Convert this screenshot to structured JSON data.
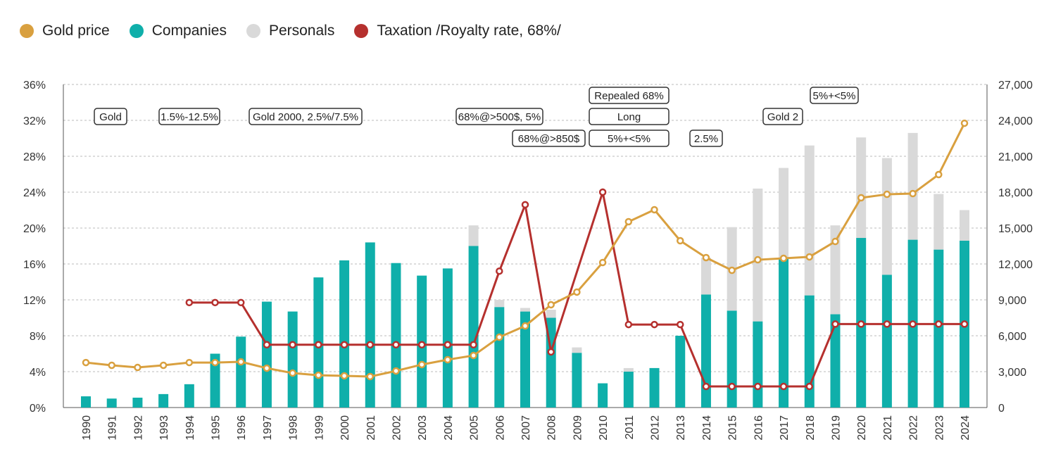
{
  "legend": [
    {
      "label": "Gold price",
      "color": "#D9A03F"
    },
    {
      "label": "Companies",
      "color": "#0FAFAA"
    },
    {
      "label": "Personals",
      "color": "#D9D9D9"
    },
    {
      "label": "Taxation /Royalty rate, 68%/",
      "color": "#B5302E"
    }
  ],
  "chart_data": {
    "type": "bar+line",
    "categories": [
      "1990",
      "1991",
      "1992",
      "1993",
      "1994",
      "1995",
      "1996",
      "1997",
      "1998",
      "1999",
      "2000",
      "2001",
      "2002",
      "2003",
      "2004",
      "2005",
      "2006",
      "2007",
      "2008",
      "2009",
      "2010",
      "2011",
      "2012",
      "2013",
      "2014",
      "2015",
      "2016",
      "2017",
      "2018",
      "2019",
      "2020",
      "2021",
      "2022",
      "2023",
      "2024"
    ],
    "left_axis": {
      "ylim": [
        0,
        36
      ],
      "ticks": [
        "0%",
        "4%",
        "8%",
        "12%",
        "16%",
        "20%",
        "24%",
        "28%",
        "32%",
        "36%"
      ]
    },
    "right_axis": {
      "ylim": [
        0,
        27000
      ],
      "ticks": [
        "0",
        "3,000",
        "6,000",
        "9,000",
        "12,000",
        "15,000",
        "18,000",
        "21,000",
        "24,000",
        "27,000"
      ]
    },
    "grid": true,
    "legend_position": "top-left",
    "series": [
      {
        "name": "Companies",
        "type": "stacked-bar",
        "axis": "left",
        "values": [
          1.25,
          1.0,
          1.1,
          1.5,
          2.6,
          6.0,
          7.9,
          11.8,
          10.7,
          14.5,
          16.4,
          18.4,
          16.1,
          14.7,
          15.5,
          18.0,
          11.2,
          10.7,
          10.0,
          6.1,
          2.7,
          4.0,
          4.4,
          8.0,
          12.6,
          10.8,
          9.6,
          16.7,
          12.5,
          10.4,
          18.9,
          14.8,
          18.7,
          17.6,
          18.6
        ]
      },
      {
        "name": "Personals",
        "type": "stacked-bar",
        "axis": "left",
        "values": [
          0,
          0,
          0,
          0,
          0,
          0,
          0,
          0,
          0,
          0,
          0,
          0,
          0,
          0,
          0,
          2.3,
          0.8,
          0.4,
          0.9,
          0.6,
          0,
          0.4,
          0,
          0,
          4.1,
          9.3,
          14.8,
          10.0,
          16.7,
          9.9,
          11.2,
          13.0,
          11.9,
          6.2,
          3.4
        ]
      },
      {
        "name": "Gold price",
        "type": "line",
        "axis": "right",
        "values": [
          3760,
          3530,
          3350,
          3530,
          3760,
          3760,
          3820,
          3290,
          2880,
          2700,
          2650,
          2590,
          3060,
          3590,
          4000,
          4350,
          5880,
          6820,
          8590,
          9650,
          12120,
          15530,
          16530,
          13940,
          12530,
          11470,
          12350,
          12470,
          12590,
          13880,
          17530,
          17820,
          17880,
          19470,
          23760
        ]
      },
      {
        "name": "Taxation /Royalty rate, 68%/",
        "type": "line",
        "axis": "left",
        "values": [
          null,
          null,
          null,
          null,
          11.7,
          11.7,
          11.7,
          7.0,
          7.0,
          7.0,
          7.0,
          7.0,
          7.0,
          7.0,
          7.0,
          7.0,
          15.2,
          22.6,
          6.2,
          null,
          24.0,
          9.25,
          9.25,
          9.25,
          2.35,
          2.35,
          2.35,
          2.35,
          2.35,
          9.3,
          9.3,
          9.3,
          9.3,
          9.3,
          9.3
        ]
      }
    ],
    "annotations": [
      "Gold",
      "1.5%-12.5%",
      "Gold 2000, 2.5%/7.5%",
      "68%@>500$, 5%",
      "68%@>850$",
      "Repealed 68%",
      "Long",
      "5%+<5%",
      "2.5%",
      "Gold 2",
      "5%+<5%"
    ]
  }
}
